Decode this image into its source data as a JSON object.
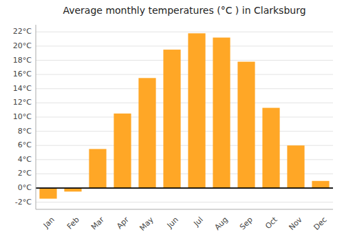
{
  "chart_data": {
    "type": "bar",
    "title": "Average monthly temperatures (°C ) in Clarksburg",
    "categories": [
      "Jan",
      "Feb",
      "Mar",
      "Apr",
      "May",
      "Jun",
      "Jul",
      "Aug",
      "Sep",
      "Oct",
      "Nov",
      "Dec"
    ],
    "values": [
      -1.5,
      -0.5,
      5.5,
      10.5,
      15.5,
      19.5,
      21.8,
      21.2,
      17.8,
      11.3,
      6.0,
      1.0
    ],
    "color": "#FFA726",
    "ylim": [
      -3,
      23
    ],
    "yticks": [
      {
        "value": -2,
        "label": "-2°C"
      },
      {
        "value": 0,
        "label": "0°C"
      },
      {
        "value": 2,
        "label": "2°C"
      },
      {
        "value": 4,
        "label": "4°C"
      },
      {
        "value": 6,
        "label": "6°C"
      },
      {
        "value": 8,
        "label": "8°C"
      },
      {
        "value": 10,
        "label": "10°C"
      },
      {
        "value": 12,
        "label": "12°C"
      },
      {
        "value": 14,
        "label": "14°C"
      },
      {
        "value": 16,
        "label": "16°C"
      },
      {
        "value": 18,
        "label": "18°C"
      },
      {
        "value": 20,
        "label": "20°C"
      },
      {
        "value": 22,
        "label": "22°C"
      }
    ],
    "grid": true
  }
}
